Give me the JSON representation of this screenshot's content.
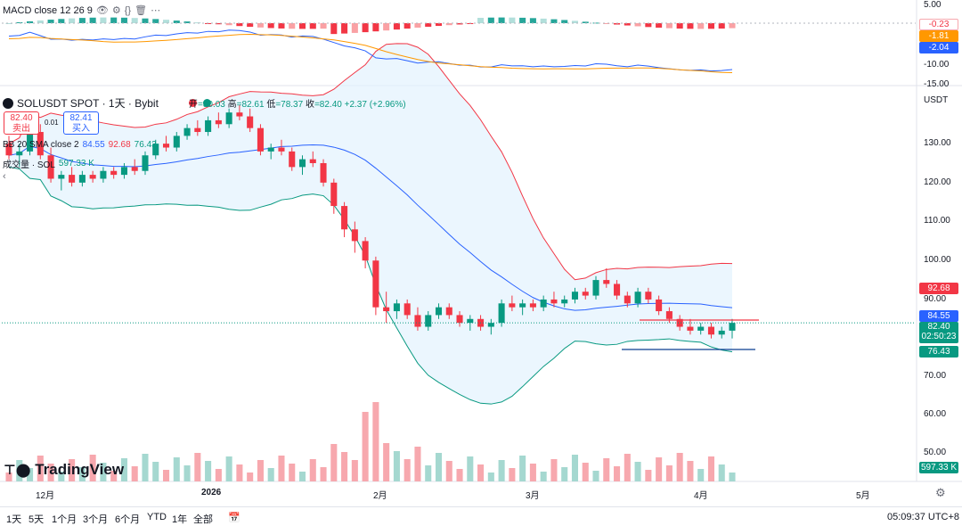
{
  "macd": {
    "title": "MACD close 12 26 9",
    "axis": [
      "5.00",
      "-5.00",
      "-10.00",
      "-15.00"
    ],
    "tags": [
      {
        "text": "-0.23",
        "color": "#ffffff",
        "fg": "#f23645",
        "border": "#f7a8ae"
      },
      {
        "text": "-1.81",
        "color": "#ff9800",
        "fg": "#ffffff"
      },
      {
        "text": "-2.04",
        "color": "#2962ff",
        "fg": "#ffffff"
      }
    ]
  },
  "header": {
    "symbol": "SOLUSDT SPOT · 1天 · Bybit",
    "ohlc": {
      "open_label": "开",
      "open": "=80.03",
      "high_label": "高",
      "high": "=82.61",
      "low_label": "低",
      "low": "=78.37",
      "close_label": "收",
      "close": "=82.40",
      "change": "+2.37 (+2.96%)"
    },
    "sell": {
      "price": "82.40",
      "label": "卖出"
    },
    "spread": "0.01",
    "buy": {
      "price": "82.41",
      "label": "买入"
    },
    "bb_label": "BB 20 SMA close 2",
    "bb_basis": "84.55",
    "bb_upper": "92.68",
    "bb_lower": "76.43",
    "volume_label": "成交量 · SOL",
    "volume_value": "597.33 K"
  },
  "price_axis": {
    "currency": "USDT",
    "ticks": [
      "130.00",
      "120.00",
      "110.00",
      "100.00",
      "90.00",
      "70.00",
      "60.00",
      "50.00"
    ],
    "tags": {
      "upper": "92.68",
      "basis": "84.55",
      "last": "82.40",
      "countdown": "02:50:23",
      "lower": "76.43",
      "volume": "597.33 K"
    }
  },
  "time_axis": [
    "12月",
    "2026",
    "2月",
    "3月",
    "4月",
    "5月"
  ],
  "watermark": "TradingView",
  "ranges": [
    "1天",
    "5天",
    "1个月",
    "3个月",
    "6个月",
    "YTD",
    "1年",
    "全部"
  ],
  "clock": "05:09:37 UTC+8",
  "colors": {
    "up": "#089981",
    "down": "#f23645",
    "bb_basis": "#2962ff",
    "bb_band": "#f23645",
    "bb_lower": "#089981",
    "bb_fill": "#e3f2fd"
  },
  "chart_data": {
    "type": "candlestick",
    "y_unit": "USDT",
    "ylim": [
      45,
      140
    ],
    "x_label_positions": [
      "12月",
      "2026",
      "2月",
      "3月",
      "4月",
      "5月"
    ],
    "candles": [
      [
        128,
        130,
        124,
        125
      ],
      [
        125,
        128,
        122,
        126
      ],
      [
        126,
        132,
        125,
        131
      ],
      [
        131,
        133,
        124,
        125
      ],
      [
        125,
        127,
        118,
        119
      ],
      [
        119,
        121,
        116,
        120
      ],
      [
        120,
        122,
        117,
        118
      ],
      [
        118,
        121,
        117,
        120
      ],
      [
        120,
        121,
        118,
        119
      ],
      [
        119,
        122,
        118,
        121
      ],
      [
        121,
        122,
        119,
        120
      ],
      [
        120,
        123,
        119,
        122
      ],
      [
        122,
        124,
        120,
        121
      ],
      [
        121,
        126,
        120,
        125
      ],
      [
        125,
        129,
        124,
        128
      ],
      [
        128,
        130,
        126,
        127
      ],
      [
        127,
        131,
        126,
        130
      ],
      [
        130,
        133,
        129,
        132
      ],
      [
        132,
        134,
        130,
        131
      ],
      [
        131,
        135,
        130,
        134
      ],
      [
        134,
        136,
        132,
        133
      ],
      [
        133,
        137,
        132,
        136
      ],
      [
        136,
        138,
        134,
        135
      ],
      [
        135,
        137,
        131,
        132
      ],
      [
        132,
        133,
        125,
        126
      ],
      [
        126,
        128,
        124,
        127
      ],
      [
        127,
        129,
        125,
        126
      ],
      [
        126,
        127,
        121,
        122
      ],
      [
        122,
        125,
        120,
        124
      ],
      [
        124,
        126,
        122,
        123
      ],
      [
        123,
        124,
        117,
        118
      ],
      [
        118,
        119,
        110,
        112
      ],
      [
        112,
        113,
        104,
        106
      ],
      [
        106,
        108,
        100,
        103
      ],
      [
        103,
        104,
        96,
        98
      ],
      [
        98,
        99,
        84,
        86
      ],
      [
        86,
        90,
        82,
        85
      ],
      [
        85,
        88,
        83,
        87
      ],
      [
        87,
        88,
        83,
        84
      ],
      [
        84,
        86,
        80,
        81
      ],
      [
        81,
        85,
        80,
        84
      ],
      [
        84,
        87,
        83,
        86
      ],
      [
        86,
        87,
        83,
        84
      ],
      [
        84,
        85,
        81,
        82
      ],
      [
        82,
        84,
        80,
        83
      ],
      [
        83,
        84,
        80,
        81
      ],
      [
        81,
        83,
        79,
        82
      ],
      [
        82,
        88,
        81,
        87
      ],
      [
        87,
        89,
        85,
        86
      ],
      [
        86,
        88,
        84,
        87
      ],
      [
        87,
        88,
        85,
        86
      ],
      [
        86,
        89,
        85,
        88
      ],
      [
        88,
        90,
        86,
        87
      ],
      [
        87,
        89,
        86,
        88
      ],
      [
        88,
        91,
        87,
        90
      ],
      [
        90,
        91,
        88,
        89
      ],
      [
        89,
        94,
        88,
        93
      ],
      [
        93,
        96,
        91,
        92
      ],
      [
        92,
        93,
        88,
        89
      ],
      [
        89,
        90,
        86,
        87
      ],
      [
        87,
        91,
        86,
        90
      ],
      [
        90,
        91,
        87,
        88
      ],
      [
        88,
        89,
        84,
        85
      ],
      [
        85,
        86,
        82,
        83
      ],
      [
        83,
        84,
        80,
        81
      ],
      [
        81,
        83,
        79,
        80
      ],
      [
        80,
        82,
        79,
        81
      ],
      [
        81,
        82,
        78,
        79
      ],
      [
        79,
        81,
        78,
        80
      ],
      [
        80,
        83,
        78,
        82
      ]
    ]
  }
}
